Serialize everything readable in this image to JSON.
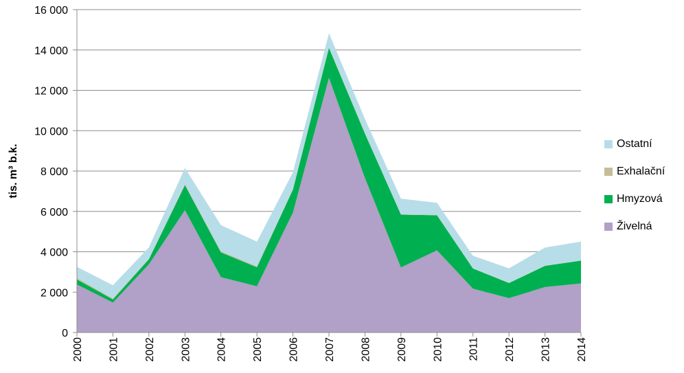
{
  "chart_data": {
    "type": "area",
    "stacked": true,
    "ylabel": "tis. m³ b.k.",
    "ylim": [
      0,
      16000
    ],
    "yticks": [
      0,
      2000,
      4000,
      6000,
      8000,
      10000,
      12000,
      14000,
      16000
    ],
    "ytick_labels": [
      "0",
      "2 000",
      "4 000",
      "6 000",
      "8 000",
      "10 000",
      "12 000",
      "14 000",
      "16 000"
    ],
    "x": [
      "2000",
      "2001",
      "2002",
      "2003",
      "2004",
      "2005",
      "2006",
      "2007",
      "2008",
      "2009",
      "2010",
      "2011",
      "2012",
      "2013",
      "2014"
    ],
    "grid": "horizontal",
    "legend_position": "right",
    "series": [
      {
        "name": "Živelná",
        "color": "#b1a0c7",
        "values": [
          2380,
          1480,
          3380,
          6060,
          2740,
          2290,
          5940,
          12620,
          7650,
          3220,
          4070,
          2170,
          1700,
          2250,
          2430
        ]
      },
      {
        "name": "Hmyzová",
        "color": "#00b050",
        "values": [
          250,
          160,
          250,
          1240,
          1230,
          940,
          1140,
          1480,
          2200,
          2620,
          1740,
          1000,
          750,
          1050,
          1130
        ]
      },
      {
        "name": "Exhalační",
        "color": "#c4bd97",
        "values": [
          70,
          40,
          30,
          50,
          50,
          50,
          30,
          30,
          30,
          20,
          20,
          10,
          10,
          10,
          10
        ]
      },
      {
        "name": "Ostatní",
        "color": "#b7dde8",
        "values": [
          550,
          660,
          560,
          800,
          1300,
          1220,
          830,
          700,
          700,
          770,
          600,
          620,
          720,
          900,
          930
        ]
      }
    ],
    "legend_order": [
      "Ostatní",
      "Exhalační",
      "Hmyzová",
      "Živelná"
    ]
  }
}
